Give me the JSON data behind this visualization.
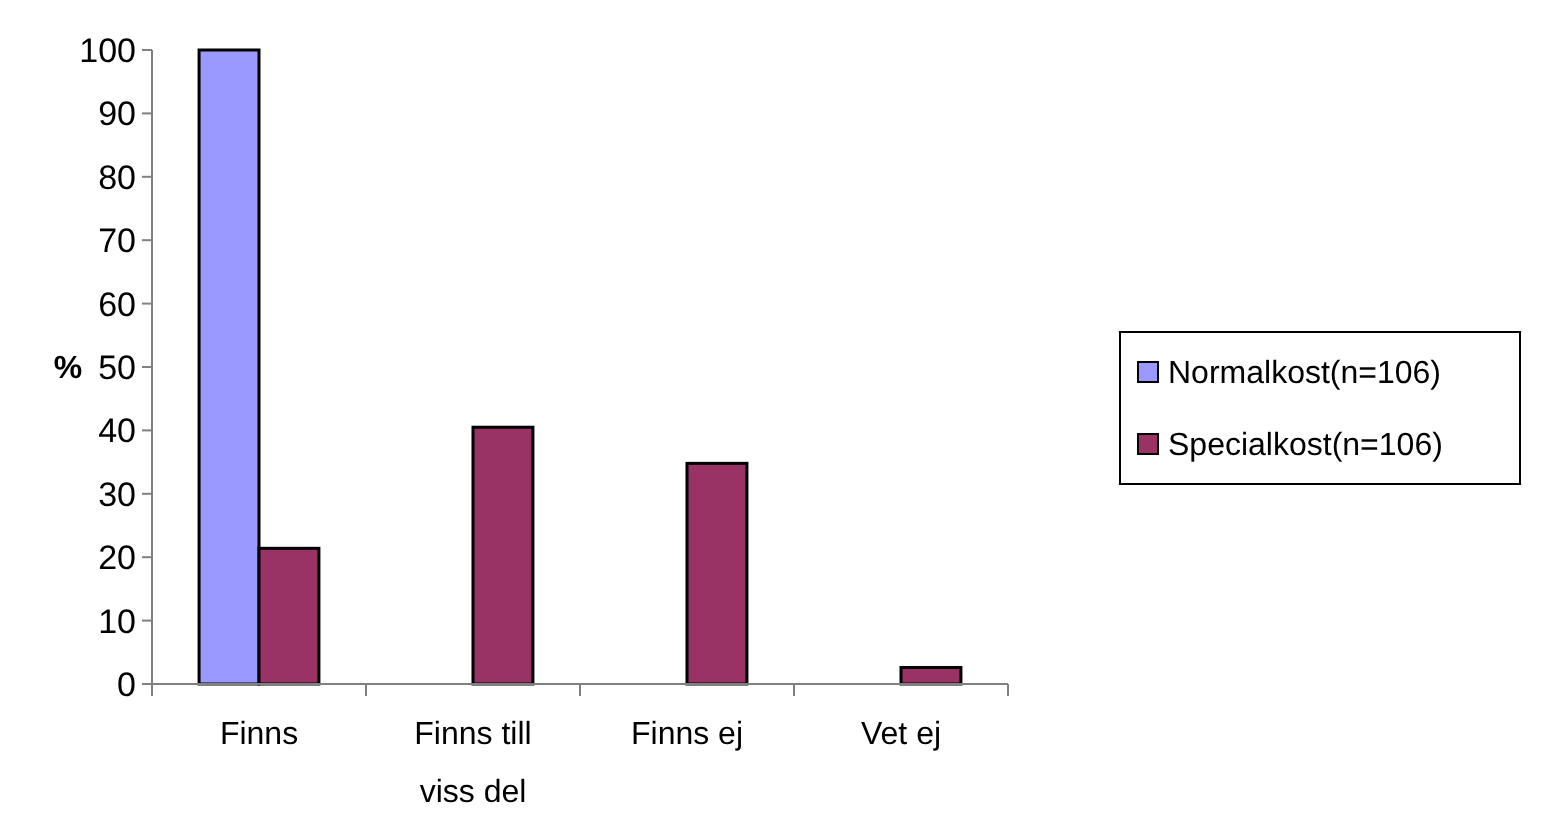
{
  "chart_data": {
    "type": "bar",
    "ylabel": "%",
    "categories": [
      "Finns",
      "Finns till\nviss del",
      "Finns ej",
      "Vet ej"
    ],
    "series": [
      {
        "name": "Normalkost(n=106)",
        "color": "#9999ff",
        "values": [
          100,
          0,
          0,
          0
        ]
      },
      {
        "name": "Specialkost(n=106)",
        "color": "#993366",
        "values": [
          21.4,
          40.5,
          34.8,
          2.6
        ]
      }
    ],
    "ylim": [
      0,
      100
    ],
    "yticks": [
      0,
      10,
      20,
      30,
      40,
      50,
      60,
      70,
      80,
      90,
      100
    ],
    "grid": false,
    "legend": "right"
  }
}
